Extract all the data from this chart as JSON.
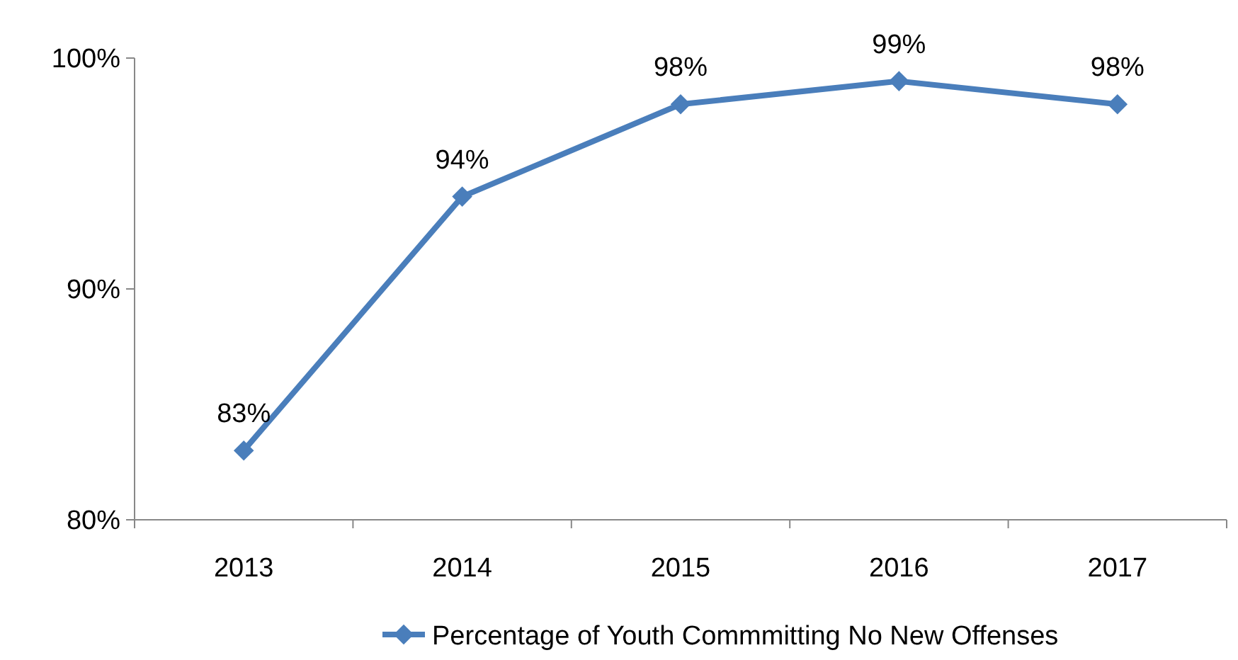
{
  "chart_data": {
    "type": "line",
    "categories": [
      "2013",
      "2014",
      "2015",
      "2016",
      "2017"
    ],
    "series": [
      {
        "name": "Percentage of Youth Commmitting No New Offenses",
        "color": "#4a7ebb",
        "values": [
          83,
          94,
          98,
          99,
          98
        ],
        "value_labels": [
          "83%",
          "94%",
          "98%",
          "99%",
          "98%"
        ]
      }
    ],
    "ylim": [
      80,
      100
    ],
    "yticks": [
      {
        "value": 80,
        "label": "80%"
      },
      {
        "value": 90,
        "label": "90%"
      },
      {
        "value": 100,
        "label": "100%"
      }
    ],
    "grid": false,
    "legend": "bottom right",
    "marker": "diamond",
    "line_style": "solid"
  }
}
